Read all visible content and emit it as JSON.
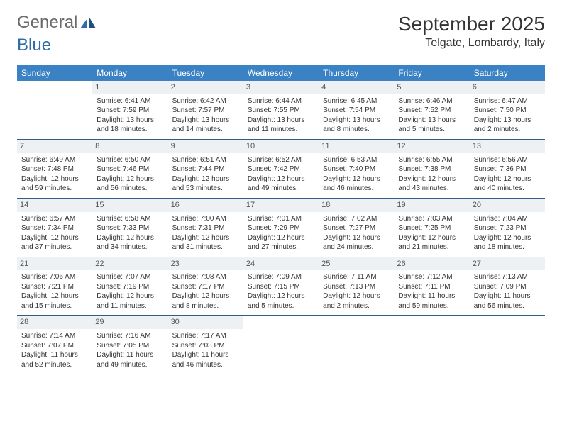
{
  "logo": {
    "word1": "General",
    "word2": "Blue"
  },
  "title": "September 2025",
  "location": "Telgate, Lombardy, Italy",
  "colors": {
    "header_bg": "#3a82c4",
    "header_text": "#ffffff",
    "daynum_bg": "#eef1f3",
    "week_border": "#2e5f8a",
    "logo_gray": "#6b6b6b",
    "logo_blue": "#2f6fa8"
  },
  "dayNames": [
    "Sunday",
    "Monday",
    "Tuesday",
    "Wednesday",
    "Thursday",
    "Friday",
    "Saturday"
  ],
  "weeks": [
    [
      {
        "day": "",
        "sunrise": "",
        "sunset": "",
        "daylight": ""
      },
      {
        "day": "1",
        "sunrise": "Sunrise: 6:41 AM",
        "sunset": "Sunset: 7:59 PM",
        "daylight": "Daylight: 13 hours and 18 minutes."
      },
      {
        "day": "2",
        "sunrise": "Sunrise: 6:42 AM",
        "sunset": "Sunset: 7:57 PM",
        "daylight": "Daylight: 13 hours and 14 minutes."
      },
      {
        "day": "3",
        "sunrise": "Sunrise: 6:44 AM",
        "sunset": "Sunset: 7:55 PM",
        "daylight": "Daylight: 13 hours and 11 minutes."
      },
      {
        "day": "4",
        "sunrise": "Sunrise: 6:45 AM",
        "sunset": "Sunset: 7:54 PM",
        "daylight": "Daylight: 13 hours and 8 minutes."
      },
      {
        "day": "5",
        "sunrise": "Sunrise: 6:46 AM",
        "sunset": "Sunset: 7:52 PM",
        "daylight": "Daylight: 13 hours and 5 minutes."
      },
      {
        "day": "6",
        "sunrise": "Sunrise: 6:47 AM",
        "sunset": "Sunset: 7:50 PM",
        "daylight": "Daylight: 13 hours and 2 minutes."
      }
    ],
    [
      {
        "day": "7",
        "sunrise": "Sunrise: 6:49 AM",
        "sunset": "Sunset: 7:48 PM",
        "daylight": "Daylight: 12 hours and 59 minutes."
      },
      {
        "day": "8",
        "sunrise": "Sunrise: 6:50 AM",
        "sunset": "Sunset: 7:46 PM",
        "daylight": "Daylight: 12 hours and 56 minutes."
      },
      {
        "day": "9",
        "sunrise": "Sunrise: 6:51 AM",
        "sunset": "Sunset: 7:44 PM",
        "daylight": "Daylight: 12 hours and 53 minutes."
      },
      {
        "day": "10",
        "sunrise": "Sunrise: 6:52 AM",
        "sunset": "Sunset: 7:42 PM",
        "daylight": "Daylight: 12 hours and 49 minutes."
      },
      {
        "day": "11",
        "sunrise": "Sunrise: 6:53 AM",
        "sunset": "Sunset: 7:40 PM",
        "daylight": "Daylight: 12 hours and 46 minutes."
      },
      {
        "day": "12",
        "sunrise": "Sunrise: 6:55 AM",
        "sunset": "Sunset: 7:38 PM",
        "daylight": "Daylight: 12 hours and 43 minutes."
      },
      {
        "day": "13",
        "sunrise": "Sunrise: 6:56 AM",
        "sunset": "Sunset: 7:36 PM",
        "daylight": "Daylight: 12 hours and 40 minutes."
      }
    ],
    [
      {
        "day": "14",
        "sunrise": "Sunrise: 6:57 AM",
        "sunset": "Sunset: 7:34 PM",
        "daylight": "Daylight: 12 hours and 37 minutes."
      },
      {
        "day": "15",
        "sunrise": "Sunrise: 6:58 AM",
        "sunset": "Sunset: 7:33 PM",
        "daylight": "Daylight: 12 hours and 34 minutes."
      },
      {
        "day": "16",
        "sunrise": "Sunrise: 7:00 AM",
        "sunset": "Sunset: 7:31 PM",
        "daylight": "Daylight: 12 hours and 31 minutes."
      },
      {
        "day": "17",
        "sunrise": "Sunrise: 7:01 AM",
        "sunset": "Sunset: 7:29 PM",
        "daylight": "Daylight: 12 hours and 27 minutes."
      },
      {
        "day": "18",
        "sunrise": "Sunrise: 7:02 AM",
        "sunset": "Sunset: 7:27 PM",
        "daylight": "Daylight: 12 hours and 24 minutes."
      },
      {
        "day": "19",
        "sunrise": "Sunrise: 7:03 AM",
        "sunset": "Sunset: 7:25 PM",
        "daylight": "Daylight: 12 hours and 21 minutes."
      },
      {
        "day": "20",
        "sunrise": "Sunrise: 7:04 AM",
        "sunset": "Sunset: 7:23 PM",
        "daylight": "Daylight: 12 hours and 18 minutes."
      }
    ],
    [
      {
        "day": "21",
        "sunrise": "Sunrise: 7:06 AM",
        "sunset": "Sunset: 7:21 PM",
        "daylight": "Daylight: 12 hours and 15 minutes."
      },
      {
        "day": "22",
        "sunrise": "Sunrise: 7:07 AM",
        "sunset": "Sunset: 7:19 PM",
        "daylight": "Daylight: 12 hours and 11 minutes."
      },
      {
        "day": "23",
        "sunrise": "Sunrise: 7:08 AM",
        "sunset": "Sunset: 7:17 PM",
        "daylight": "Daylight: 12 hours and 8 minutes."
      },
      {
        "day": "24",
        "sunrise": "Sunrise: 7:09 AM",
        "sunset": "Sunset: 7:15 PM",
        "daylight": "Daylight: 12 hours and 5 minutes."
      },
      {
        "day": "25",
        "sunrise": "Sunrise: 7:11 AM",
        "sunset": "Sunset: 7:13 PM",
        "daylight": "Daylight: 12 hours and 2 minutes."
      },
      {
        "day": "26",
        "sunrise": "Sunrise: 7:12 AM",
        "sunset": "Sunset: 7:11 PM",
        "daylight": "Daylight: 11 hours and 59 minutes."
      },
      {
        "day": "27",
        "sunrise": "Sunrise: 7:13 AM",
        "sunset": "Sunset: 7:09 PM",
        "daylight": "Daylight: 11 hours and 56 minutes."
      }
    ],
    [
      {
        "day": "28",
        "sunrise": "Sunrise: 7:14 AM",
        "sunset": "Sunset: 7:07 PM",
        "daylight": "Daylight: 11 hours and 52 minutes."
      },
      {
        "day": "29",
        "sunrise": "Sunrise: 7:16 AM",
        "sunset": "Sunset: 7:05 PM",
        "daylight": "Daylight: 11 hours and 49 minutes."
      },
      {
        "day": "30",
        "sunrise": "Sunrise: 7:17 AM",
        "sunset": "Sunset: 7:03 PM",
        "daylight": "Daylight: 11 hours and 46 minutes."
      },
      {
        "day": "",
        "sunrise": "",
        "sunset": "",
        "daylight": ""
      },
      {
        "day": "",
        "sunrise": "",
        "sunset": "",
        "daylight": ""
      },
      {
        "day": "",
        "sunrise": "",
        "sunset": "",
        "daylight": ""
      },
      {
        "day": "",
        "sunrise": "",
        "sunset": "",
        "daylight": ""
      }
    ]
  ]
}
